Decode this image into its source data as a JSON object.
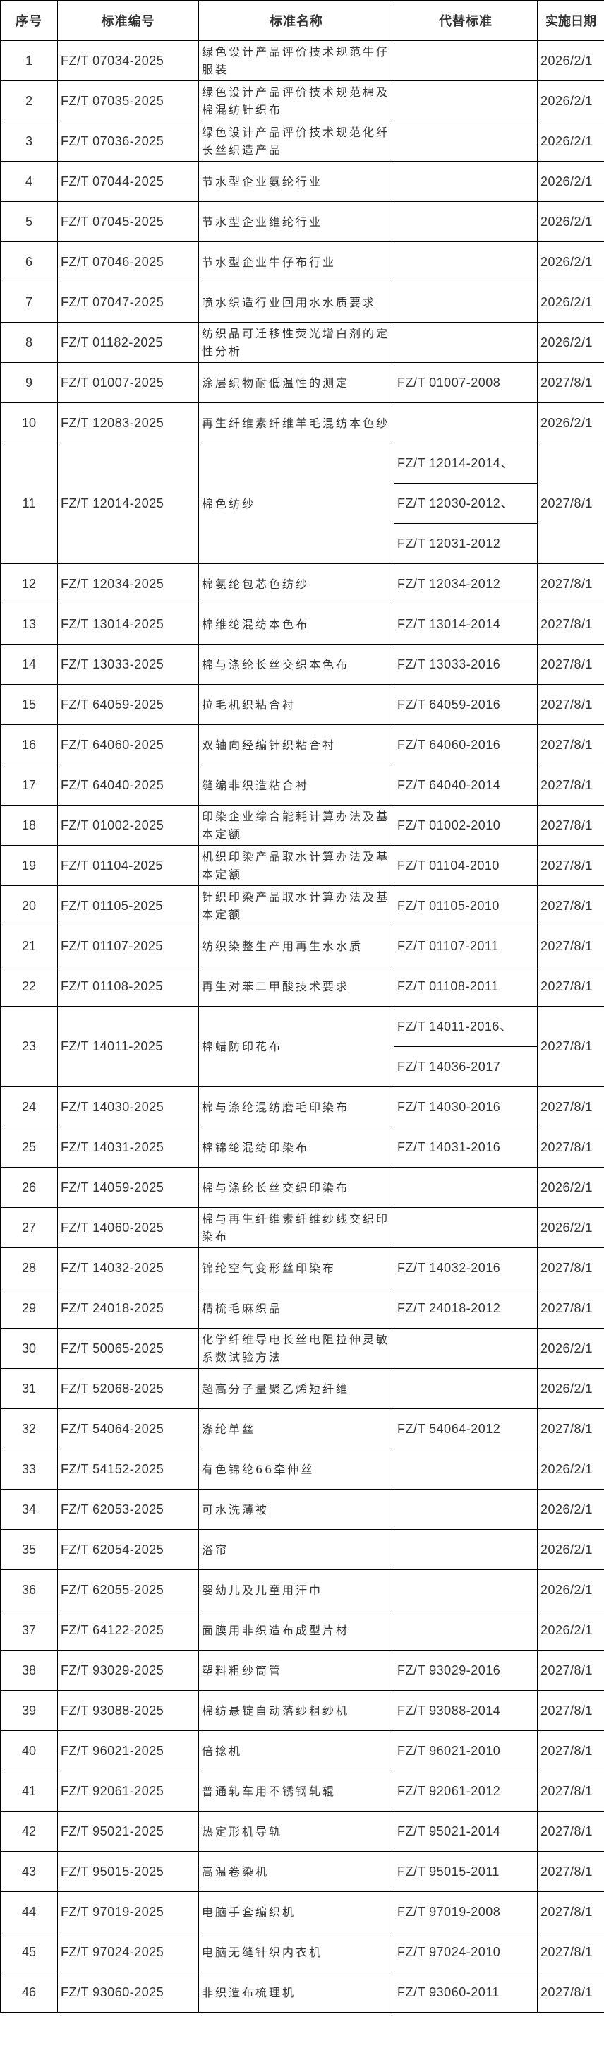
{
  "headers": [
    "序号",
    "标准编号",
    "标准名称",
    "代替标准",
    "实施日期"
  ],
  "rows": [
    {
      "no": "1",
      "code": "FZ/T 07034-2025",
      "name": "绿色设计产品评价技术规范牛仔服装",
      "replaces": [
        ""
      ],
      "date": "2026/2/1"
    },
    {
      "no": "2",
      "code": "FZ/T 07035-2025",
      "name": "绿色设计产品评价技术规范棉及棉混纺针织布",
      "replaces": [
        ""
      ],
      "date": "2026/2/1"
    },
    {
      "no": "3",
      "code": "FZ/T 07036-2025",
      "name": "绿色设计产品评价技术规范化纤长丝织造产品",
      "replaces": [
        ""
      ],
      "date": "2026/2/1"
    },
    {
      "no": "4",
      "code": "FZ/T 07044-2025",
      "name": "节水型企业氨纶行业",
      "replaces": [
        ""
      ],
      "date": "2026/2/1"
    },
    {
      "no": "5",
      "code": "FZ/T 07045-2025",
      "name": "节水型企业维纶行业",
      "replaces": [
        ""
      ],
      "date": "2026/2/1"
    },
    {
      "no": "6",
      "code": "FZ/T 07046-2025",
      "name": "节水型企业牛仔布行业",
      "replaces": [
        ""
      ],
      "date": "2026/2/1"
    },
    {
      "no": "7",
      "code": "FZ/T 07047-2025",
      "name": "喷水织造行业回用水水质要求",
      "replaces": [
        ""
      ],
      "date": "2026/2/1"
    },
    {
      "no": "8",
      "code": "FZ/T 01182-2025",
      "name": "纺织品可迁移性荧光增白剂的定性分析",
      "replaces": [
        ""
      ],
      "date": "2026/2/1"
    },
    {
      "no": "9",
      "code": "FZ/T 01007-2025",
      "name": "涂层织物耐低温性的测定",
      "replaces": [
        "FZ/T 01007-2008"
      ],
      "date": "2027/8/1"
    },
    {
      "no": "10",
      "code": "FZ/T 12083-2025",
      "name": "再生纤维素纤维羊毛混纺本色纱",
      "replaces": [
        ""
      ],
      "date": "2026/2/1"
    },
    {
      "no": "11",
      "code": "FZ/T 12014-2025",
      "name": "棉色纺纱",
      "replaces": [
        "FZ/T 12014-2014、",
        "FZ/T 12030-2012、",
        "FZ/T 12031-2012"
      ],
      "date": "2027/8/1"
    },
    {
      "no": "12",
      "code": "FZ/T 12034-2025",
      "name": "棉氨纶包芯色纺纱",
      "replaces": [
        "FZ/T 12034-2012"
      ],
      "date": "2027/8/1"
    },
    {
      "no": "13",
      "code": "FZ/T 13014-2025",
      "name": "棉维纶混纺本色布",
      "replaces": [
        "FZ/T 13014-2014"
      ],
      "date": "2027/8/1"
    },
    {
      "no": "14",
      "code": "FZ/T 13033-2025",
      "name": "棉与涤纶长丝交织本色布",
      "replaces": [
        "FZ/T 13033-2016"
      ],
      "date": "2027/8/1"
    },
    {
      "no": "15",
      "code": "FZ/T 64059-2025",
      "name": "拉毛机织粘合衬",
      "replaces": [
        "FZ/T 64059-2016"
      ],
      "date": "2027/8/1"
    },
    {
      "no": "16",
      "code": "FZ/T 64060-2025",
      "name": "双轴向经编针织粘合衬",
      "replaces": [
        "FZ/T 64060-2016"
      ],
      "date": "2027/8/1"
    },
    {
      "no": "17",
      "code": "FZ/T 64040-2025",
      "name": "缝编非织造粘合衬",
      "replaces": [
        "FZ/T 64040-2014"
      ],
      "date": "2027/8/1"
    },
    {
      "no": "18",
      "code": "FZ/T 01002-2025",
      "name": "印染企业综合能耗计算办法及基本定额",
      "replaces": [
        "FZ/T 01002-2010"
      ],
      "date": "2027/8/1"
    },
    {
      "no": "19",
      "code": "FZ/T 01104-2025",
      "name": "机织印染产品取水计算办法及基本定额",
      "replaces": [
        "FZ/T 01104-2010"
      ],
      "date": "2027/8/1"
    },
    {
      "no": "20",
      "code": "FZ/T 01105-2025",
      "name": "针织印染产品取水计算办法及基本定额",
      "replaces": [
        "FZ/T 01105-2010"
      ],
      "date": "2027/8/1"
    },
    {
      "no": "21",
      "code": "FZ/T 01107-2025",
      "name": "纺织染整生产用再生水水质",
      "replaces": [
        "FZ/T 01107-2011"
      ],
      "date": "2027/8/1"
    },
    {
      "no": "22",
      "code": "FZ/T 01108-2025",
      "name": "再生对苯二甲酸技术要求",
      "replaces": [
        "FZ/T 01108-2011"
      ],
      "date": "2027/8/1"
    },
    {
      "no": "23",
      "code": "FZ/T 14011-2025",
      "name": "棉蜡防印花布",
      "replaces": [
        "FZ/T  14011-2016、",
        "FZ/T 14036-2017"
      ],
      "date": "2027/8/1"
    },
    {
      "no": "24",
      "code": "FZ/T 14030-2025",
      "name": "棉与涤纶混纺磨毛印染布",
      "replaces": [
        "FZ/T 14030-2016"
      ],
      "date": "2027/8/1"
    },
    {
      "no": "25",
      "code": "FZ/T 14031-2025",
      "name": "棉锦纶混纺印染布",
      "replaces": [
        "FZ/T 14031-2016"
      ],
      "date": "2027/8/1"
    },
    {
      "no": "26",
      "code": "FZ/T 14059-2025",
      "name": "棉与涤纶长丝交织印染布",
      "replaces": [
        ""
      ],
      "date": "2026/2/1"
    },
    {
      "no": "27",
      "code": "FZ/T 14060-2025",
      "name": "棉与再生纤维素纤维纱线交织印染布",
      "replaces": [
        ""
      ],
      "date": "2026/2/1"
    },
    {
      "no": "28",
      "code": "FZ/T 14032-2025",
      "name": "锦纶空气变形丝印染布",
      "replaces": [
        "FZ/T 14032-2016"
      ],
      "date": "2027/8/1"
    },
    {
      "no": "29",
      "code": "FZ/T 24018-2025",
      "name": "精梳毛麻织品",
      "replaces": [
        "FZ/T 24018-2012"
      ],
      "date": "2027/8/1"
    },
    {
      "no": "30",
      "code": "FZ/T 50065-2025",
      "name": "化学纤维导电长丝电阻拉伸灵敏系数试验方法",
      "replaces": [
        ""
      ],
      "date": "2026/2/1"
    },
    {
      "no": "31",
      "code": "FZ/T 52068-2025",
      "name": "超高分子量聚乙烯短纤维",
      "replaces": [
        ""
      ],
      "date": "2026/2/1"
    },
    {
      "no": "32",
      "code": "FZ/T 54064-2025",
      "name": "涤纶单丝",
      "replaces": [
        "FZ/T 54064-2012"
      ],
      "date": "2027/8/1"
    },
    {
      "no": "33",
      "code": "FZ/T 54152-2025",
      "name": "有色锦纶66牵伸丝",
      "replaces": [
        ""
      ],
      "date": "2026/2/1"
    },
    {
      "no": "34",
      "code": "FZ/T 62053-2025",
      "name": "可水洗薄被",
      "replaces": [
        ""
      ],
      "date": "2026/2/1"
    },
    {
      "no": "35",
      "code": "FZ/T 62054-2025",
      "name": "浴帘",
      "replaces": [
        ""
      ],
      "date": "2026/2/1"
    },
    {
      "no": "36",
      "code": "FZ/T 62055-2025",
      "name": "婴幼儿及儿童用汗巾",
      "replaces": [
        ""
      ],
      "date": "2026/2/1"
    },
    {
      "no": "37",
      "code": "FZ/T 64122-2025",
      "name": "面膜用非织造布成型片材",
      "replaces": [
        ""
      ],
      "date": "2026/2/1"
    },
    {
      "no": "38",
      "code": "FZ/T 93029-2025",
      "name": "塑料粗纱筒管",
      "replaces": [
        "FZ/T 93029-2016"
      ],
      "date": "2027/8/1"
    },
    {
      "no": "39",
      "code": "FZ/T 93088-2025",
      "name": "棉纺悬锭自动落纱粗纱机",
      "replaces": [
        "FZ/T 93088-2014"
      ],
      "date": "2027/8/1"
    },
    {
      "no": "40",
      "code": "FZ/T 96021-2025",
      "name": "倍捻机",
      "replaces": [
        "FZ/T 96021-2010"
      ],
      "date": "2027/8/1"
    },
    {
      "no": "41",
      "code": "FZ/T 92061-2025",
      "name": "普通轧车用不锈钢轧辊",
      "replaces": [
        "FZ/T 92061-2012"
      ],
      "date": "2027/8/1"
    },
    {
      "no": "42",
      "code": "FZ/T 95021-2025",
      "name": "热定形机导轨",
      "replaces": [
        "FZ/T 95021-2014"
      ],
      "date": "2027/8/1"
    },
    {
      "no": "43",
      "code": "FZ/T 95015-2025",
      "name": "高温卷染机",
      "replaces": [
        "FZ/T 95015-2011"
      ],
      "date": "2027/8/1"
    },
    {
      "no": "44",
      "code": "FZ/T 97019-2025",
      "name": "电脑手套编织机",
      "replaces": [
        "FZ/T 97019-2008"
      ],
      "date": "2027/8/1"
    },
    {
      "no": "45",
      "code": "FZ/T 97024-2025",
      "name": "电脑无缝针织内衣机",
      "replaces": [
        "FZ/T 97024-2010"
      ],
      "date": "2027/8/1"
    },
    {
      "no": "46",
      "code": "FZ/T 93060-2025",
      "name": "非织造布梳理机",
      "replaces": [
        "FZ/T 93060-2011"
      ],
      "date": "2027/8/1"
    }
  ]
}
